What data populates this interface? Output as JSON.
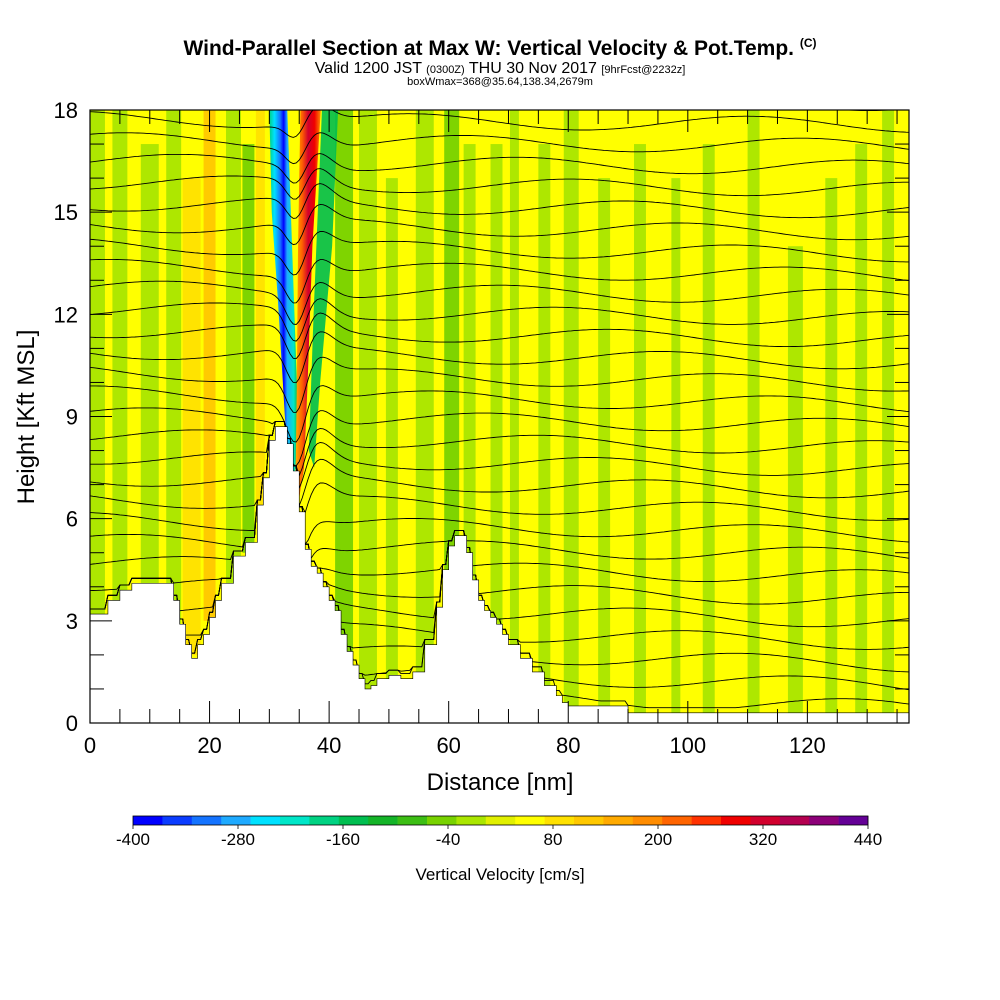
{
  "header": {
    "title": "Wind-Parallel Section at Max W: Vertical Velocity & Pot.Temp.",
    "title_tag": "(C)",
    "valid_prefix": "Valid 1200 JST",
    "valid_utc": "(0300Z)",
    "valid_date": "THU 30 Nov 2017",
    "forecast_info": "[9hrFcst@2232z]",
    "box_info": "boxWmax=368@35.64,138.34,2679m"
  },
  "colorbar": {
    "title": "Vertical Velocity [cm/s]",
    "tick_labels": [
      "-400",
      "-280",
      "-160",
      "-40",
      "80",
      "200",
      "320",
      "440"
    ],
    "colors": [
      "#0000ff",
      "#0a3cff",
      "#1473ff",
      "#1eaaff",
      "#00e1ff",
      "#00e6c8",
      "#00d282",
      "#00be50",
      "#14b428",
      "#3cbe14",
      "#78d200",
      "#aae600",
      "#e1f000",
      "#ffff00",
      "#ffe100",
      "#ffc800",
      "#ffaa00",
      "#ff8c00",
      "#ff6400",
      "#ff3200",
      "#f00000",
      "#d2002d",
      "#b40050",
      "#8c0078",
      "#640096"
    ]
  },
  "chart_data": {
    "type": "heatmap",
    "title": "Wind-Parallel Section at Max W: Vertical Velocity & Pot.Temp.",
    "xlabel": "Distance [nm]",
    "ylabel": "Height [Kft MSL]",
    "xlim": [
      0,
      137
    ],
    "ylim": [
      0,
      18
    ],
    "x_ticks": [
      0,
      20,
      40,
      60,
      80,
      100,
      120
    ],
    "y_ticks": [
      0,
      3,
      6,
      9,
      12,
      15,
      18
    ],
    "color_variable": "Vertical Velocity [cm/s]",
    "contour_variable": "Potential Temperature",
    "color_range": [
      -400,
      440
    ],
    "max_updraft_cm_s": 368,
    "max_location": "35.64,138.34,2679m",
    "terrain_profile": {
      "distance_nm": [
        0,
        3,
        5,
        7,
        10,
        13,
        14,
        15,
        16,
        17,
        18,
        19,
        20,
        21,
        22,
        24,
        26,
        28,
        29,
        30,
        31,
        32,
        33,
        34,
        35,
        36,
        37,
        38,
        39,
        40,
        41,
        42,
        43,
        44,
        45,
        46,
        47,
        48,
        50,
        52,
        54,
        56,
        58,
        59,
        60,
        61,
        62,
        63,
        64,
        65,
        66,
        67,
        68,
        69,
        70,
        72,
        74,
        76,
        78,
        79,
        80,
        82,
        84,
        86,
        88,
        90,
        91,
        95,
        100,
        110,
        120,
        130,
        137
      ],
      "height_kft": [
        3.2,
        3.6,
        3.9,
        4.1,
        4.1,
        4.1,
        3.6,
        2.9,
        2.3,
        1.9,
        2.3,
        2.6,
        3.1,
        3.6,
        4.1,
        4.9,
        5.3,
        6.4,
        7.2,
        8.3,
        8.7,
        8.7,
        8.2,
        7.4,
        6.2,
        5.1,
        4.6,
        4.4,
        4.0,
        3.6,
        3.3,
        2.6,
        2.1,
        1.7,
        1.3,
        1.0,
        1.1,
        1.3,
        1.4,
        1.3,
        1.5,
        2.3,
        3.4,
        4.5,
        5.2,
        5.5,
        5.5,
        5.0,
        4.2,
        3.6,
        3.3,
        3.1,
        2.9,
        2.6,
        2.3,
        1.9,
        1.5,
        1.1,
        0.8,
        0.6,
        0.5,
        0.5,
        0.5,
        0.5,
        0.5,
        0.3,
        0.3,
        0.3,
        0.3,
        0.3,
        0.3,
        0.3,
        0.3
      ]
    }
  }
}
